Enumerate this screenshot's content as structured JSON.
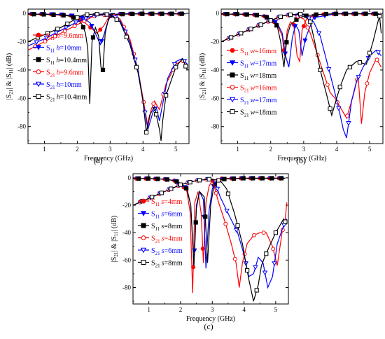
{
  "chart_data": [
    {
      "type": "line",
      "caption": "(a)",
      "xlabel": "Frequency (GHz)",
      "ylabel": "|S21| & |S11| (dB)",
      "xlim": [
        0.5,
        5.4
      ],
      "ylim": [
        -92,
        3
      ],
      "xticks": [
        1,
        2,
        3,
        4,
        5
      ],
      "yticks": [
        0,
        -20,
        -40,
        -60,
        -80
      ],
      "legend": [
        {
          "main": "S",
          "sub": "11",
          "param": "h",
          "value": "=9.6mm",
          "color": "#ff0000",
          "marker": "circle",
          "fill": true
        },
        {
          "main": "S",
          "sub": "11",
          "param": "h",
          "value": "=10mm",
          "color": "#0000ff",
          "marker": "tri-down",
          "fill": true
        },
        {
          "main": "S",
          "sub": "11",
          "param": "h",
          "value": "=10.4mm",
          "color": "#000000",
          "marker": "square",
          "fill": true
        },
        {
          "main": "S",
          "sub": "21",
          "param": "h",
          "value": "=9.6mm",
          "color": "#ff0000",
          "marker": "circle",
          "fill": false
        },
        {
          "main": "S",
          "sub": "21",
          "param": "h",
          "value": "=10mm",
          "color": "#0000ff",
          "marker": "tri-down",
          "fill": false
        },
        {
          "main": "S",
          "sub": "21",
          "param": "h",
          "value": "=10.4mm",
          "color": "#000000",
          "marker": "square",
          "fill": false
        }
      ],
      "series": [
        {
          "color": "#ff0000",
          "marker": "circle",
          "fill": true,
          "x": [
            0.5,
            1,
            1.5,
            1.8,
            2,
            2.2,
            2.4,
            2.6,
            2.8,
            2.95,
            3.05,
            3.2,
            3.5,
            4,
            4.5,
            5,
            5.3
          ],
          "y": [
            -0.5,
            -0.5,
            -0.8,
            -1.5,
            -3,
            -6,
            -10,
            -14,
            -9,
            -3,
            -1,
            -0.5,
            -0.3,
            -0.3,
            -0.3,
            -0.3,
            -0.3
          ]
        },
        {
          "color": "#0000ff",
          "marker": "tri-down",
          "fill": true,
          "x": [
            0.5,
            1,
            1.5,
            2,
            2.2,
            2.4,
            2.55,
            2.7,
            2.8,
            2.9,
            3.0,
            3.1,
            3.2,
            3.5,
            4,
            4.5,
            5,
            5.3
          ],
          "y": [
            -0.5,
            -0.5,
            -0.8,
            -2,
            -3.5,
            -7,
            -14,
            -22,
            -16,
            -8,
            -2,
            -0.8,
            -0.5,
            -0.3,
            -0.3,
            -0.3,
            -0.3,
            -0.3
          ]
        },
        {
          "color": "#000000",
          "marker": "square",
          "fill": true,
          "x": [
            0.5,
            1,
            1.5,
            1.8,
            2.0,
            2.15,
            2.25,
            2.32,
            2.38,
            2.45,
            2.55,
            2.65,
            2.72,
            2.78,
            2.85,
            2.95,
            3.1,
            3.4,
            4,
            5,
            5.3
          ],
          "y": [
            -0.5,
            -0.7,
            -1.2,
            -2,
            -4,
            -8,
            -14,
            -25,
            -64,
            -20,
            -10,
            -16,
            -38,
            -40,
            -14,
            -4,
            -1,
            -0.5,
            -0.3,
            -0.3,
            -0.3
          ]
        },
        {
          "color": "#ff0000",
          "marker": "circle",
          "fill": false,
          "x": [
            0.5,
            1,
            1.5,
            2,
            2.5,
            3.0,
            3.3,
            3.6,
            3.85,
            4.0,
            4.15,
            4.25,
            4.35,
            4.5,
            4.7,
            5.0,
            5.2,
            5.35
          ],
          "y": [
            -26,
            -20,
            -14,
            -8,
            -2,
            -0.5,
            -4,
            -18,
            -40,
            -60,
            -80,
            -68,
            -62,
            -68,
            -50,
            -36,
            -33,
            -38
          ]
        },
        {
          "color": "#0000ff",
          "marker": "tri-down",
          "fill": false,
          "x": [
            0.5,
            1,
            1.5,
            2,
            2.5,
            3.0,
            3.3,
            3.6,
            3.85,
            4.0,
            4.15,
            4.3,
            4.4,
            4.5,
            4.6,
            4.75,
            5.0,
            5.2,
            5.35
          ],
          "y": [
            -23,
            -18,
            -12,
            -6,
            -1.5,
            -0.5,
            -5,
            -20,
            -40,
            -62,
            -82,
            -70,
            -66,
            -76,
            -64,
            -46,
            -34,
            -32,
            -36
          ]
        },
        {
          "color": "#000000",
          "marker": "square",
          "fill": false,
          "x": [
            0.5,
            1,
            1.5,
            1.8,
            2,
            2.2,
            2.5,
            2.8,
            3.0,
            3.3,
            3.6,
            3.85,
            4.0,
            4.1,
            4.2,
            4.35,
            4.5,
            4.55,
            4.6,
            4.7,
            5.0,
            5.2,
            5.35
          ],
          "y": [
            -20,
            -15,
            -10,
            -6,
            -3,
            -1,
            -0.5,
            -0.5,
            -1,
            -6,
            -22,
            -42,
            -62,
            -84,
            -72,
            -66,
            -82,
            -90,
            -76,
            -58,
            -38,
            -32,
            -40
          ]
        }
      ]
    },
    {
      "type": "line",
      "caption": "(b)",
      "xlabel": "Frequency (GHz)",
      "ylabel": "|S21| & |S11| (dB)",
      "xlim": [
        0.5,
        5.4
      ],
      "ylim": [
        -92,
        3
      ],
      "xticks": [
        1,
        2,
        3,
        4,
        5
      ],
      "yticks": [
        0,
        -20,
        -40,
        -60,
        -80
      ],
      "legend": [
        {
          "main": "S",
          "sub": "11",
          "param": "w",
          "value": "=16mm",
          "color": "#ff0000",
          "marker": "circle",
          "fill": true
        },
        {
          "main": "S",
          "sub": "11",
          "param": "w",
          "value": "=17mm",
          "color": "#0000ff",
          "marker": "tri-down",
          "fill": true
        },
        {
          "main": "S",
          "sub": "11",
          "param": "w",
          "value": "=18mm",
          "color": "#000000",
          "marker": "square",
          "fill": true
        },
        {
          "main": "S",
          "sub": "21",
          "param": "w",
          "value": "=16mm",
          "color": "#ff0000",
          "marker": "circle",
          "fill": false
        },
        {
          "main": "S",
          "sub": "21",
          "param": "w",
          "value": "=17mm",
          "color": "#0000ff",
          "marker": "tri-down",
          "fill": false
        },
        {
          "main": "S",
          "sub": "21",
          "param": "w",
          "value": "=18mm",
          "color": "#000000",
          "marker": "square",
          "fill": false
        }
      ],
      "series": [
        {
          "color": "#ff0000",
          "marker": "circle",
          "fill": true,
          "x": [
            0.5,
            1,
            1.5,
            1.8,
            2.0,
            2.2,
            2.35,
            2.42,
            2.5,
            2.6,
            2.7,
            2.8,
            2.88,
            2.95,
            3.1,
            3.4,
            4,
            5,
            5.3
          ],
          "y": [
            -0.5,
            -0.5,
            -1,
            -2,
            -4,
            -8,
            -16,
            -30,
            -12,
            -6,
            -8,
            -30,
            -34,
            -12,
            -3,
            -1,
            -0.3,
            -0.3,
            -0.3
          ]
        },
        {
          "color": "#0000ff",
          "marker": "tri-down",
          "fill": true,
          "x": [
            0.5,
            1,
            1.5,
            1.8,
            2.0,
            2.2,
            2.35,
            2.45,
            2.55,
            2.65,
            2.75,
            2.85,
            2.95,
            3.05,
            3.3,
            4,
            5,
            5.3
          ],
          "y": [
            -0.5,
            -0.5,
            -1,
            -2,
            -4,
            -7,
            -14,
            -30,
            -38,
            -18,
            -8,
            -12,
            -30,
            -18,
            -3,
            -0.3,
            -0.3,
            -0.3
          ]
        },
        {
          "color": "#000000",
          "marker": "square",
          "fill": true,
          "x": [
            0.5,
            1,
            1.5,
            1.8,
            2.0,
            2.2,
            2.3,
            2.4,
            2.5,
            2.6,
            2.8,
            3.0,
            3.3,
            3.6,
            4,
            5,
            5.3
          ],
          "y": [
            -0.5,
            -0.5,
            -1,
            -2,
            -4,
            -9,
            -20,
            -38,
            -16,
            -8,
            -4,
            -2,
            -1,
            -0.5,
            -0.3,
            -0.3,
            -0.3
          ]
        },
        {
          "color": "#ff0000",
          "marker": "circle",
          "fill": false,
          "x": [
            0.5,
            1,
            1.5,
            2,
            2.4,
            2.7,
            3.0,
            3.2,
            3.4,
            3.6,
            3.8,
            3.95,
            4.1,
            4.3,
            4.5,
            4.65,
            4.75,
            4.85,
            5.0,
            5.2,
            5.35
          ],
          "y": [
            -20,
            -15,
            -10,
            -5,
            -1.5,
            -1,
            -4,
            -14,
            -28,
            -42,
            -56,
            -60,
            -66,
            -74,
            -58,
            -44,
            -78,
            -56,
            -42,
            -32,
            -38
          ]
        },
        {
          "color": "#0000ff",
          "marker": "tri-down",
          "fill": false,
          "x": [
            0.5,
            1,
            1.5,
            2,
            2.4,
            2.7,
            3.0,
            3.3,
            3.5,
            3.7,
            3.9,
            4.05,
            4.2,
            4.3,
            4.45,
            4.6,
            4.8,
            5.0,
            5.2,
            5.35
          ],
          "y": [
            -20,
            -15,
            -10,
            -5,
            -1.5,
            -1,
            -1,
            -6,
            -16,
            -34,
            -52,
            -66,
            -82,
            -88,
            -62,
            -48,
            -38,
            -30,
            -26,
            -30
          ]
        },
        {
          "color": "#000000",
          "marker": "square",
          "fill": false,
          "x": [
            0.5,
            1,
            1.5,
            2,
            2.4,
            2.8,
            3.0,
            3.2,
            3.35,
            3.5,
            3.7,
            3.85,
            3.95,
            4.1,
            4.3,
            4.6,
            4.9,
            5.1,
            5.25,
            5.3,
            5.35
          ],
          "y": [
            -20,
            -15,
            -10,
            -5,
            -1.5,
            -0.5,
            -0.5,
            -6,
            -22,
            -40,
            -58,
            -72,
            -64,
            -52,
            -40,
            -34,
            -36,
            -20,
            -6,
            -2,
            -14
          ]
        }
      ]
    },
    {
      "type": "line",
      "caption": "(c)",
      "xlabel": "Frequency (GHz)",
      "ylabel": "|S21| & |S11| (dB)",
      "xlim": [
        0.5,
        5.4
      ],
      "ylim": [
        -92,
        3
      ],
      "xticks": [
        1,
        2,
        3,
        4,
        5
      ],
      "yticks": [
        0,
        -20,
        -40,
        -60,
        -80
      ],
      "legend": [
        {
          "main": "S",
          "sub": "11",
          "param": "s",
          "value": "=4mm",
          "color": "#ff0000",
          "marker": "circle",
          "fill": true
        },
        {
          "main": "S",
          "sub": "11",
          "param": "s",
          "value": "=6mm",
          "color": "#0000ff",
          "marker": "tri-down",
          "fill": true
        },
        {
          "main": "S",
          "sub": "11",
          "param": "s",
          "value": "=8mm",
          "color": "#000000",
          "marker": "square",
          "fill": true
        },
        {
          "main": "S",
          "sub": "21",
          "param": "s",
          "value": "=4mm",
          "color": "#ff0000",
          "marker": "circle",
          "fill": false
        },
        {
          "main": "S",
          "sub": "21",
          "param": "s",
          "value": "=6mm",
          "color": "#0000ff",
          "marker": "tri-down",
          "fill": false
        },
        {
          "main": "S",
          "sub": "21",
          "param": "s",
          "value": "=8mm",
          "color": "#000000",
          "marker": "square",
          "fill": false
        }
      ],
      "series": [
        {
          "color": "#ff0000",
          "marker": "circle",
          "fill": true,
          "x": [
            0.5,
            1,
            1.5,
            1.8,
            2.0,
            2.2,
            2.3,
            2.38,
            2.45,
            2.55,
            2.65,
            2.72,
            2.8,
            2.9,
            3.0,
            3.3,
            4,
            5,
            5.3
          ],
          "y": [
            -0.5,
            -0.5,
            -1,
            -2,
            -4,
            -10,
            -25,
            -84,
            -18,
            -10,
            -26,
            -62,
            -18,
            -6,
            -2,
            -0.5,
            -0.3,
            -0.3,
            -0.3
          ]
        },
        {
          "color": "#0000ff",
          "marker": "tri-down",
          "fill": true,
          "x": [
            0.5,
            1,
            1.5,
            1.8,
            2.0,
            2.2,
            2.32,
            2.42,
            2.5,
            2.6,
            2.72,
            2.8,
            2.9,
            3.0,
            3.1,
            3.3,
            4,
            5,
            5.3
          ],
          "y": [
            -0.5,
            -0.5,
            -1,
            -2,
            -4,
            -8,
            -20,
            -64,
            -20,
            -10,
            -16,
            -66,
            -24,
            -8,
            -3,
            -1,
            -0.3,
            -0.3,
            -0.3
          ]
        },
        {
          "color": "#000000",
          "marker": "square",
          "fill": true,
          "x": [
            0.5,
            1,
            1.5,
            1.8,
            2.0,
            2.2,
            2.32,
            2.42,
            2.5,
            2.6,
            2.75,
            2.85,
            2.95,
            3.05,
            3.15,
            3.4,
            4,
            5,
            5.3
          ],
          "y": [
            -0.5,
            -0.5,
            -1,
            -2,
            -4,
            -8,
            -20,
            -64,
            -22,
            -10,
            -14,
            -62,
            -20,
            -6,
            -2,
            -0.8,
            -0.3,
            -0.3,
            -0.3
          ]
        },
        {
          "color": "#ff0000",
          "marker": "circle",
          "fill": false,
          "x": [
            0.5,
            1,
            1.5,
            2,
            2.5,
            2.9,
            3.0,
            3.2,
            3.4,
            3.6,
            3.75,
            3.85,
            3.95,
            4.1,
            4.3,
            4.5,
            4.7,
            4.9,
            5.05,
            5.2,
            5.3,
            5.35
          ],
          "y": [
            -20,
            -15,
            -10,
            -5,
            -2,
            -1,
            -1,
            -18,
            -32,
            -48,
            -62,
            -80,
            -62,
            -48,
            -42,
            -40,
            -40,
            -50,
            -64,
            -40,
            -30,
            -18
          ]
        },
        {
          "color": "#0000ff",
          "marker": "tri-down",
          "fill": false,
          "x": [
            0.5,
            1,
            1.5,
            2,
            2.5,
            2.9,
            3.0,
            3.1,
            3.25,
            3.5,
            3.8,
            4.0,
            4.15,
            4.3,
            4.45,
            4.6,
            4.75,
            4.9,
            5.05,
            5.2,
            5.3,
            5.35
          ],
          "y": [
            -20,
            -15,
            -10,
            -5,
            -2,
            -1,
            -1,
            -4,
            -14,
            -26,
            -40,
            -56,
            -72,
            -70,
            -58,
            -62,
            -80,
            -72,
            -48,
            -38,
            -32,
            -30
          ]
        },
        {
          "color": "#000000",
          "marker": "square",
          "fill": false,
          "x": [
            0.5,
            1,
            1.5,
            2,
            2.5,
            2.9,
            3.1,
            3.25,
            3.45,
            3.7,
            3.95,
            4.15,
            4.3,
            4.45,
            4.55,
            4.65,
            4.8,
            5.0,
            5.15,
            5.25,
            5.35
          ],
          "y": [
            -20,
            -15,
            -10,
            -5,
            -2,
            -1,
            -1.5,
            -2,
            -8,
            -26,
            -48,
            -74,
            -90,
            -78,
            -64,
            -58,
            -50,
            -40,
            -34,
            -30,
            -34
          ]
        }
      ]
    }
  ]
}
